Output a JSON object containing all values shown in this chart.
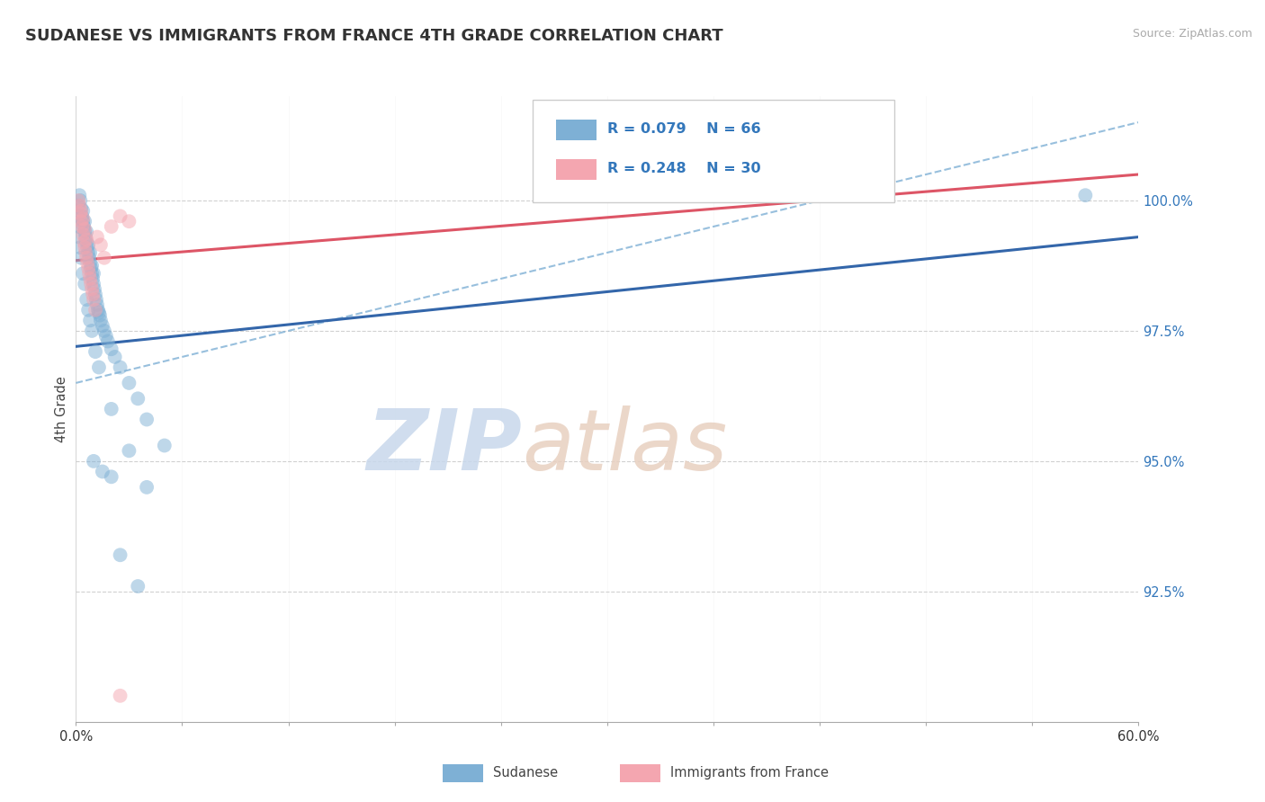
{
  "title": "SUDANESE VS IMMIGRANTS FROM FRANCE 4TH GRADE CORRELATION CHART",
  "source_text": "Source: ZipAtlas.com",
  "xlabel_blue": "Sudanese",
  "xlabel_pink": "Immigrants from France",
  "ylabel": "4th Grade",
  "watermark_zip": "ZIP",
  "watermark_atlas": "atlas",
  "xlim": [
    0.0,
    60.0
  ],
  "ylim": [
    90.0,
    102.0
  ],
  "yticks": [
    92.5,
    95.0,
    97.5,
    100.0
  ],
  "ytick_labels": [
    "92.5%",
    "95.0%",
    "97.5%",
    "100.0%"
  ],
  "xticks": [
    0.0,
    6.0,
    12.0,
    18.0,
    24.0,
    30.0,
    36.0,
    42.0,
    48.0,
    54.0,
    60.0
  ],
  "xtick_labels": [
    "0.0%",
    "",
    "",
    "",
    "",
    "",
    "",
    "",
    "",
    "",
    "60.0%"
  ],
  "legend_blue_r": "R = 0.079",
  "legend_blue_n": "N = 66",
  "legend_pink_r": "R = 0.248",
  "legend_pink_n": "N = 30",
  "blue_color": "#7EB0D5",
  "pink_color": "#F4A6B0",
  "trend_blue_color": "#3366AA",
  "trend_pink_color": "#DD5566",
  "blue_scatter_x": [
    0.15,
    0.2,
    0.25,
    0.3,
    0.35,
    0.4,
    0.4,
    0.45,
    0.5,
    0.5,
    0.55,
    0.6,
    0.6,
    0.65,
    0.7,
    0.7,
    0.75,
    0.8,
    0.8,
    0.85,
    0.9,
    0.9,
    0.95,
    1.0,
    1.0,
    1.05,
    1.1,
    1.15,
    1.2,
    1.25,
    1.3,
    1.35,
    1.4,
    1.5,
    1.6,
    1.7,
    1.8,
    2.0,
    2.2,
    2.5,
    3.0,
    3.5,
    4.0,
    5.0,
    0.1,
    0.15,
    0.2,
    0.25,
    0.3,
    0.4,
    0.5,
    0.6,
    0.7,
    0.8,
    0.9,
    1.1,
    1.3,
    2.0,
    3.0,
    4.0,
    1.5,
    2.5,
    3.5,
    57.0,
    1.0,
    2.0
  ],
  "blue_scatter_y": [
    99.9,
    100.1,
    100.0,
    99.85,
    99.7,
    99.6,
    99.8,
    99.5,
    99.4,
    99.6,
    99.3,
    99.2,
    99.4,
    99.1,
    99.0,
    99.15,
    98.9,
    98.8,
    99.0,
    98.7,
    98.6,
    98.75,
    98.5,
    98.4,
    98.6,
    98.3,
    98.2,
    98.1,
    98.0,
    97.9,
    97.85,
    97.8,
    97.7,
    97.6,
    97.5,
    97.4,
    97.3,
    97.15,
    97.0,
    96.8,
    96.5,
    96.2,
    95.8,
    95.3,
    99.7,
    99.5,
    99.3,
    99.1,
    98.9,
    98.6,
    98.4,
    98.1,
    97.9,
    97.7,
    97.5,
    97.1,
    96.8,
    96.0,
    95.2,
    94.5,
    94.8,
    93.2,
    92.6,
    100.1,
    95.0,
    94.7
  ],
  "pink_scatter_x": [
    0.15,
    0.2,
    0.25,
    0.3,
    0.35,
    0.4,
    0.45,
    0.5,
    0.55,
    0.6,
    0.65,
    0.7,
    0.75,
    0.8,
    0.85,
    0.9,
    0.95,
    1.0,
    1.1,
    1.2,
    1.4,
    1.6,
    2.0,
    2.5,
    3.0,
    0.3,
    0.4,
    0.5,
    0.6,
    2.5
  ],
  "pink_scatter_y": [
    100.0,
    99.9,
    99.75,
    99.6,
    99.5,
    99.35,
    99.2,
    99.1,
    99.0,
    98.9,
    98.8,
    98.7,
    98.6,
    98.5,
    98.4,
    98.3,
    98.2,
    98.1,
    97.9,
    99.3,
    99.15,
    98.9,
    99.5,
    99.7,
    99.6,
    99.8,
    99.65,
    99.45,
    99.25,
    90.5
  ],
  "blue_trend_x0": 0.0,
  "blue_trend_x1": 60.0,
  "blue_trend_y0": 97.2,
  "blue_trend_y1": 99.3,
  "blue_dashed_x0": 0.0,
  "blue_dashed_x1": 60.0,
  "blue_dashed_y0": 96.5,
  "blue_dashed_y1": 101.5,
  "pink_trend_x0": 0.0,
  "pink_trend_x1": 60.0,
  "pink_trend_y0": 98.85,
  "pink_trend_y1": 100.5
}
